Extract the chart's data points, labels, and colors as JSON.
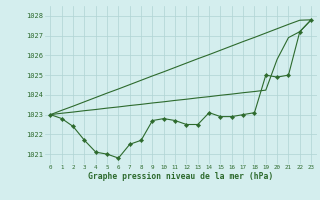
{
  "x": [
    0,
    1,
    2,
    3,
    4,
    5,
    6,
    7,
    8,
    9,
    10,
    11,
    12,
    13,
    14,
    15,
    16,
    17,
    18,
    19,
    20,
    21,
    22,
    23
  ],
  "series_main": [
    1023.0,
    1022.8,
    1022.4,
    1021.7,
    1021.1,
    1021.0,
    1020.8,
    1021.5,
    1021.7,
    1022.7,
    1022.8,
    1022.7,
    1022.5,
    1022.5,
    1023.1,
    1022.9,
    1022.9,
    1023.0,
    1023.1,
    1025.0,
    1024.9,
    1025.0,
    1027.2,
    1027.8
  ],
  "series_upper1": [
    1023.0,
    1023.07,
    1023.13,
    1023.2,
    1023.26,
    1023.33,
    1023.39,
    1023.46,
    1023.52,
    1023.59,
    1023.65,
    1023.72,
    1023.78,
    1023.85,
    1023.91,
    1023.98,
    1024.04,
    1024.11,
    1024.17,
    1024.24,
    1025.8,
    1026.9,
    1027.2,
    1027.8
  ],
  "series_upper2": [
    1023.0,
    1023.22,
    1023.43,
    1023.65,
    1023.87,
    1024.09,
    1024.3,
    1024.52,
    1024.74,
    1024.96,
    1025.17,
    1025.39,
    1025.61,
    1025.83,
    1026.04,
    1026.26,
    1026.48,
    1026.7,
    1026.91,
    1027.13,
    1027.35,
    1027.57,
    1027.78,
    1027.8
  ],
  "ylim": [
    1020.5,
    1028.5
  ],
  "xlim": [
    -0.5,
    23.5
  ],
  "yticks": [
    1021,
    1022,
    1023,
    1024,
    1025,
    1026,
    1027,
    1028
  ],
  "xticks": [
    0,
    1,
    2,
    3,
    4,
    5,
    6,
    7,
    8,
    9,
    10,
    11,
    12,
    13,
    14,
    15,
    16,
    17,
    18,
    19,
    20,
    21,
    22,
    23
  ],
  "xlabel": "Graphe pression niveau de la mer (hPa)",
  "line_color": "#2d6a2d",
  "bg_color": "#d4eeee",
  "grid_color": "#b0d4d4",
  "marker": "D",
  "marker_size": 2.2,
  "linewidth": 0.8
}
